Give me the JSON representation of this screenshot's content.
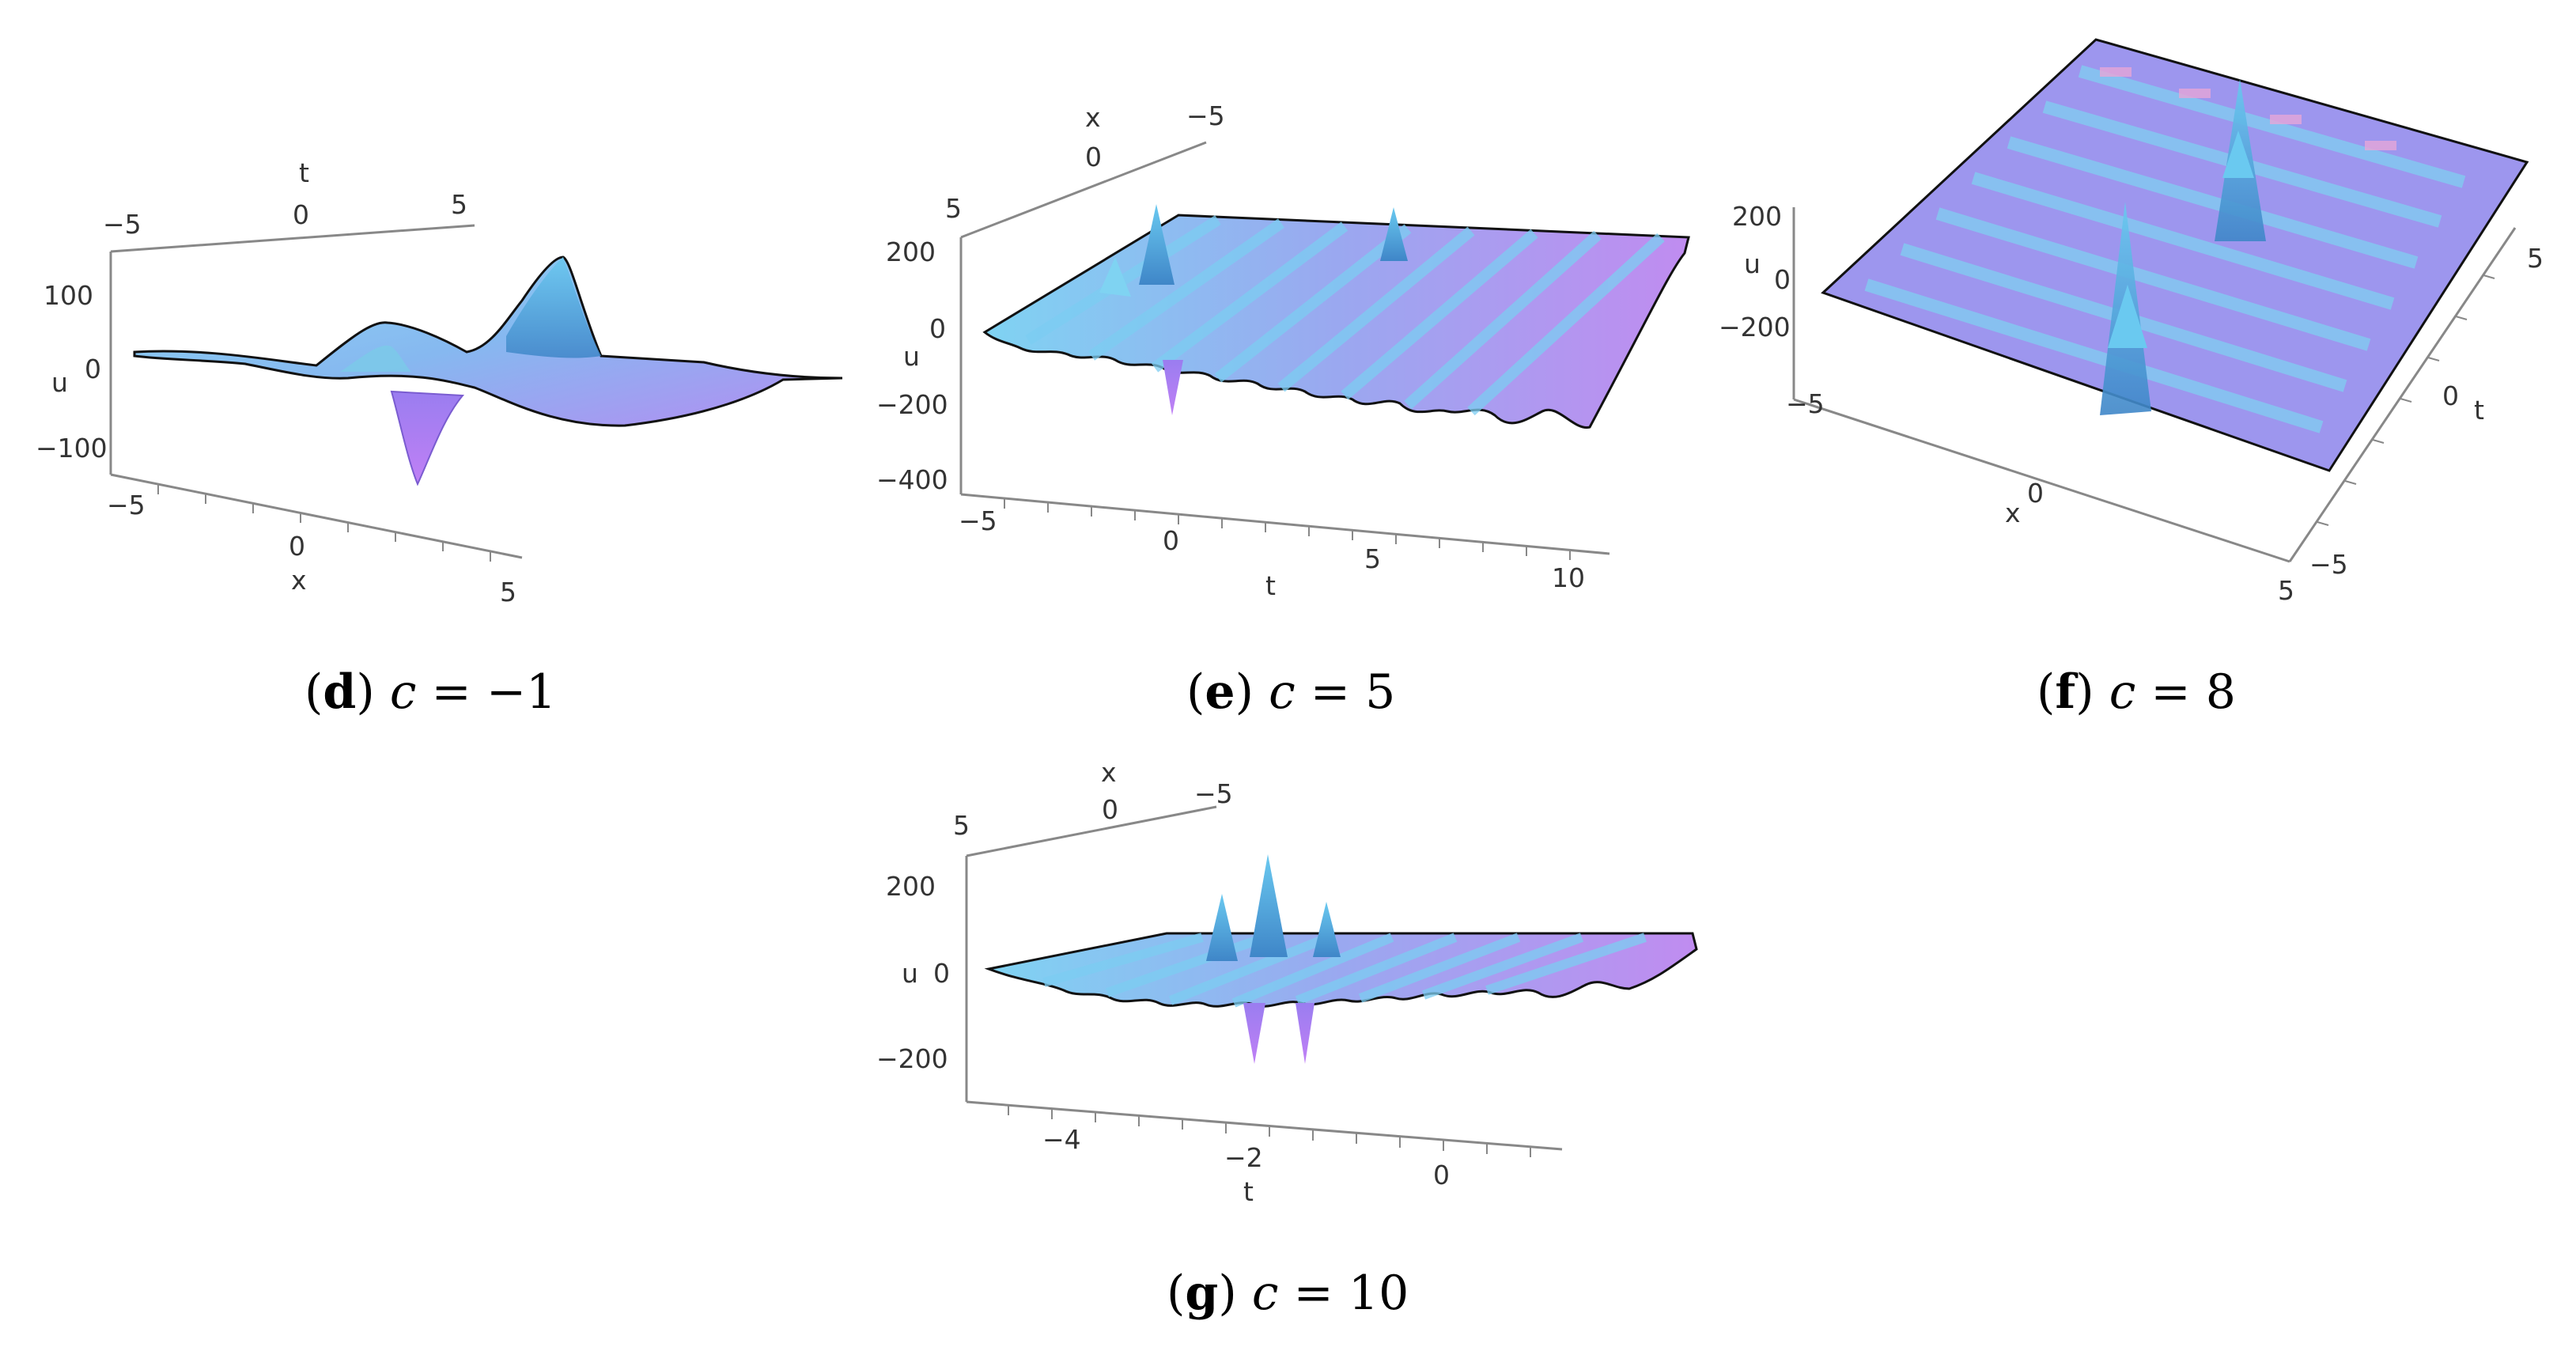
{
  "colors": {
    "surface_light": "#7fd3f2",
    "surface_mid": "#7aa6ee",
    "surface_violet": "#b48cf2",
    "edge": "#111111",
    "axis": "#888888"
  },
  "panels": [
    {
      "label": "d",
      "param": "c",
      "eq": "=",
      "value": "−1",
      "chart_data": {
        "type": "surface3d",
        "xlabel": "x",
        "ylabel": "t",
        "zlabel": "u",
        "t_ticks": [
          "−5",
          "0",
          "5"
        ],
        "x_ticks": [
          "−5",
          "0",
          "5"
        ],
        "u_ticks": [
          "100",
          "0",
          "−100"
        ],
        "xlim": [
          -5,
          5
        ],
        "tlim": [
          -5,
          5
        ],
        "zlim": [
          -150,
          150
        ]
      }
    },
    {
      "label": "e",
      "param": "c",
      "eq": "=",
      "value": "5",
      "chart_data": {
        "type": "surface3d",
        "xlabel": "x",
        "ylabel": "t",
        "zlabel": "u",
        "x_ticks": [
          "5",
          "0",
          "−5"
        ],
        "t_ticks": [
          "−5",
          "0",
          "5",
          "10"
        ],
        "u_ticks": [
          "200",
          "0",
          "−200",
          "−400"
        ],
        "xlim": [
          -5,
          5
        ],
        "tlim": [
          -5,
          10
        ],
        "zlim": [
          -400,
          250
        ]
      }
    },
    {
      "label": "f",
      "param": "c",
      "eq": "=",
      "value": "8",
      "chart_data": {
        "type": "surface3d",
        "xlabel": "x",
        "ylabel": "t",
        "zlabel": "u",
        "x_ticks": [
          "−5",
          "0",
          "5"
        ],
        "t_ticks": [
          "5",
          "0",
          "−5"
        ],
        "u_ticks": [
          "200",
          "0",
          "−200"
        ],
        "xlim": [
          -5,
          5
        ],
        "tlim": [
          -5,
          5
        ],
        "zlim": [
          -250,
          250
        ]
      }
    },
    {
      "label": "g",
      "param": "c",
      "eq": "=",
      "value": "10",
      "chart_data": {
        "type": "surface3d",
        "xlabel": "x",
        "ylabel": "t",
        "zlabel": "u",
        "x_ticks": [
          "5",
          "0",
          "−5"
        ],
        "t_ticks": [
          "−4",
          "−2",
          "0"
        ],
        "u_ticks": [
          "200",
          "0",
          "−200"
        ],
        "xlim": [
          -5,
          5
        ],
        "tlim": [
          -5,
          1
        ],
        "zlim": [
          -250,
          300
        ]
      }
    }
  ]
}
